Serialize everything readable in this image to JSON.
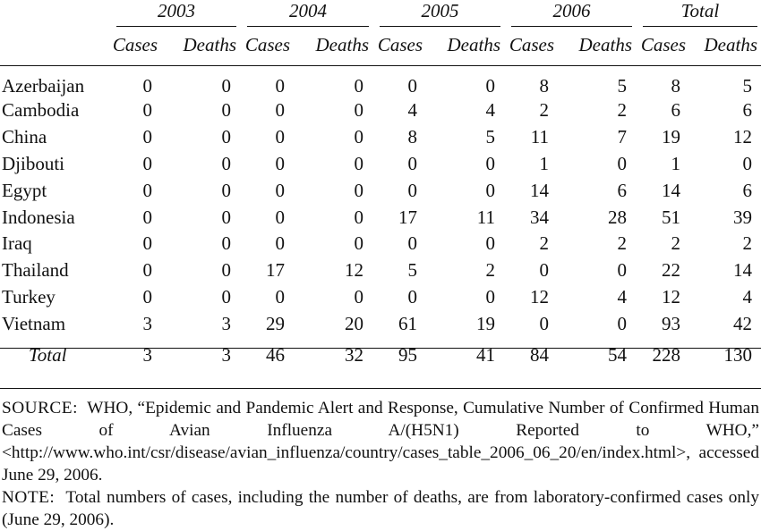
{
  "table": {
    "years": [
      "2003",
      "2004",
      "2005",
      "2006",
      "Total"
    ],
    "sub_headers": {
      "cases": "Cases",
      "deaths": "Deaths"
    },
    "rows": [
      {
        "country": "Azerbaijan",
        "values": [
          "0",
          "0",
          "0",
          "0",
          "0",
          "0",
          "8",
          "5",
          "8",
          "5"
        ]
      },
      {
        "country": "Cambodia",
        "values": [
          "0",
          "0",
          "0",
          "0",
          "4",
          "4",
          "2",
          "2",
          "6",
          "6"
        ]
      },
      {
        "country": "China",
        "values": [
          "0",
          "0",
          "0",
          "0",
          "8",
          "5",
          "11",
          "7",
          "19",
          "12"
        ]
      },
      {
        "country": "Djibouti",
        "values": [
          "0",
          "0",
          "0",
          "0",
          "0",
          "0",
          "1",
          "0",
          "1",
          "0"
        ]
      },
      {
        "country": "Egypt",
        "values": [
          "0",
          "0",
          "0",
          "0",
          "0",
          "0",
          "14",
          "6",
          "14",
          "6"
        ]
      },
      {
        "country": "Indonesia",
        "values": [
          "0",
          "0",
          "0",
          "0",
          "17",
          "11",
          "34",
          "28",
          "51",
          "39"
        ]
      },
      {
        "country": "Iraq",
        "values": [
          "0",
          "0",
          "0",
          "0",
          "0",
          "0",
          "2",
          "2",
          "2",
          "2"
        ]
      },
      {
        "country": "Thailand",
        "values": [
          "0",
          "0",
          "17",
          "12",
          "5",
          "2",
          "0",
          "0",
          "22",
          "14"
        ]
      },
      {
        "country": "Turkey",
        "values": [
          "0",
          "0",
          "0",
          "0",
          "0",
          "0",
          "12",
          "4",
          "12",
          "4"
        ]
      },
      {
        "country": "Vietnam",
        "values": [
          "3",
          "3",
          "29",
          "20",
          "61",
          "19",
          "0",
          "0",
          "93",
          "42"
        ]
      }
    ],
    "total": {
      "label": "Total",
      "values": [
        "3",
        "3",
        "46",
        "32",
        "95",
        "41",
        "84",
        "54",
        "228",
        "130"
      ]
    }
  },
  "notes": {
    "source_label": "SOURCE:",
    "source_text": "WHO, “Epidemic and Pandemic Alert and Response, Cumulative Number of Confirmed Human Cases of Avian Influenza A/(H5N1) Reported to WHO,” <http://www.who.int/csr/disease/avian_influenza/country/cases_table_2006_06_20/en/index.html>, accessed June 29, 2006.",
    "note_label": "NOTE:",
    "note_text": "Total numbers of cases, including the number of deaths, are from laboratory-confirmed cases only (June 29, 2006)."
  }
}
